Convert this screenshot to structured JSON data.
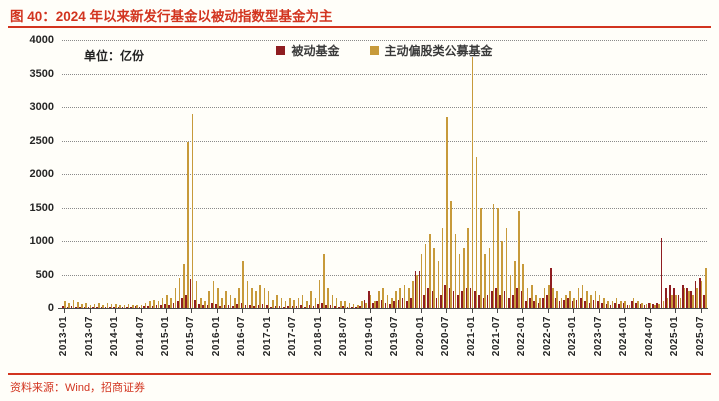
{
  "header": {
    "title": "图 40：2024 年以来新发行基金以被动指数型基金为主"
  },
  "footer": {
    "source": "资料来源：Wind，招商证券"
  },
  "colors": {
    "accent": "#D2341F",
    "background": "#FFFEF9",
    "text": "#262626",
    "grid": "#8a8a8a",
    "passive_series": "#8F1D21",
    "active_series": "#C79A3B"
  },
  "chart_data": {
    "type": "bar",
    "title": "图 40：2024 年以来新发行基金以被动指数型基金为主",
    "unit_label": "单位：亿份",
    "xlabel": "",
    "ylabel": "",
    "ylim": [
      0,
      4000
    ],
    "yticks": [
      0,
      500,
      1000,
      1500,
      2000,
      2500,
      3000,
      3500,
      4000
    ],
    "grid": "horizontal-dotted",
    "legend_position": "top-center",
    "x_tick_labels": [
      "2013-01",
      "2013-07",
      "2014-01",
      "2014-07",
      "2015-01",
      "2015-07",
      "2016-01",
      "2016-07",
      "2017-01",
      "2017-07",
      "2018-01",
      "2018-07",
      "2019-01",
      "2019-07",
      "2020-01",
      "2020-07",
      "2021-01",
      "2021-07",
      "2022-01",
      "2022-07",
      "2023-01",
      "2023-07",
      "2024-01",
      "2024-07",
      "2025-01",
      "2025-07"
    ],
    "categories": [
      "2013-01",
      "2013-02",
      "2013-03",
      "2013-04",
      "2013-05",
      "2013-06",
      "2013-07",
      "2013-08",
      "2013-09",
      "2013-10",
      "2013-11",
      "2013-12",
      "2014-01",
      "2014-02",
      "2014-03",
      "2014-04",
      "2014-05",
      "2014-06",
      "2014-07",
      "2014-08",
      "2014-09",
      "2014-10",
      "2014-11",
      "2014-12",
      "2015-01",
      "2015-02",
      "2015-03",
      "2015-04",
      "2015-05",
      "2015-06",
      "2015-07",
      "2015-08",
      "2015-09",
      "2015-10",
      "2015-11",
      "2015-12",
      "2016-01",
      "2016-02",
      "2016-03",
      "2016-04",
      "2016-05",
      "2016-06",
      "2016-07",
      "2016-08",
      "2016-09",
      "2016-10",
      "2016-11",
      "2016-12",
      "2017-01",
      "2017-02",
      "2017-03",
      "2017-04",
      "2017-05",
      "2017-06",
      "2017-07",
      "2017-08",
      "2017-09",
      "2017-10",
      "2017-11",
      "2017-12",
      "2018-01",
      "2018-02",
      "2018-03",
      "2018-04",
      "2018-05",
      "2018-06",
      "2018-07",
      "2018-08",
      "2018-09",
      "2018-10",
      "2018-11",
      "2018-12",
      "2019-01",
      "2019-02",
      "2019-03",
      "2019-04",
      "2019-05",
      "2019-06",
      "2019-07",
      "2019-08",
      "2019-09",
      "2019-10",
      "2019-11",
      "2019-12",
      "2020-01",
      "2020-02",
      "2020-03",
      "2020-04",
      "2020-05",
      "2020-06",
      "2020-07",
      "2020-08",
      "2020-09",
      "2020-10",
      "2020-11",
      "2020-12",
      "2021-01",
      "2021-02",
      "2021-03",
      "2021-04",
      "2021-05",
      "2021-06",
      "2021-07",
      "2021-08",
      "2021-09",
      "2021-10",
      "2021-11",
      "2021-12",
      "2022-01",
      "2022-02",
      "2022-03",
      "2022-04",
      "2022-05",
      "2022-06",
      "2022-07",
      "2022-08",
      "2022-09",
      "2022-10",
      "2022-11",
      "2022-12",
      "2023-01",
      "2023-02",
      "2023-03",
      "2023-04",
      "2023-05",
      "2023-06",
      "2023-07",
      "2023-08",
      "2023-09",
      "2023-10",
      "2023-11",
      "2023-12",
      "2024-01",
      "2024-02",
      "2024-03",
      "2024-04",
      "2024-05",
      "2024-06",
      "2024-07",
      "2024-08",
      "2024-09",
      "2024-10",
      "2024-11",
      "2024-12",
      "2025-01",
      "2025-02",
      "2025-03",
      "2025-04",
      "2025-05",
      "2025-06",
      "2025-07",
      "2025-08"
    ],
    "series": [
      {
        "name": "被动基金",
        "color": "#8F1D21",
        "values": [
          30,
          20,
          25,
          15,
          10,
          20,
          15,
          10,
          20,
          10,
          15,
          20,
          20,
          15,
          10,
          20,
          15,
          25,
          20,
          30,
          25,
          30,
          40,
          50,
          60,
          40,
          80,
          100,
          150,
          200,
          430,
          120,
          60,
          40,
          50,
          80,
          60,
          30,
          50,
          40,
          30,
          60,
          80,
          50,
          40,
          30,
          50,
          60,
          40,
          20,
          30,
          25,
          20,
          30,
          25,
          30,
          40,
          20,
          50,
          30,
          60,
          80,
          50,
          40,
          30,
          20,
          25,
          20,
          15,
          10,
          30,
          120,
          250,
          80,
          100,
          120,
          80,
          60,
          100,
          120,
          150,
          100,
          150,
          550,
          550,
          200,
          300,
          250,
          150,
          200,
          350,
          300,
          250,
          200,
          250,
          300,
          300,
          250,
          200,
          150,
          200,
          250,
          300,
          200,
          250,
          150,
          200,
          300,
          250,
          100,
          150,
          100,
          80,
          150,
          200,
          600,
          150,
          100,
          120,
          150,
          100,
          120,
          150,
          100,
          80,
          120,
          100,
          80,
          60,
          50,
          80,
          60,
          80,
          50,
          100,
          80,
          60,
          50,
          70,
          60,
          80,
          1050,
          300,
          350,
          300,
          200,
          350,
          300,
          250,
          400,
          450,
          200
        ]
      },
      {
        "name": "主动偏股类公募基金",
        "color": "#C79A3B",
        "values": [
          100,
          80,
          120,
          90,
          60,
          70,
          50,
          60,
          80,
          50,
          70,
          60,
          60,
          50,
          40,
          60,
          50,
          40,
          50,
          80,
          100,
          120,
          100,
          150,
          200,
          150,
          300,
          450,
          650,
          2480,
          2900,
          400,
          150,
          100,
          250,
          400,
          300,
          150,
          250,
          200,
          150,
          300,
          700,
          400,
          300,
          250,
          350,
          300,
          250,
          120,
          200,
          150,
          100,
          150,
          120,
          150,
          200,
          100,
          250,
          150,
          420,
          800,
          300,
          200,
          150,
          100,
          100,
          80,
          60,
          50,
          100,
          80,
          200,
          100,
          250,
          300,
          200,
          150,
          250,
          300,
          350,
          300,
          400,
          500,
          800,
          950,
          1100,
          900,
          700,
          1200,
          2850,
          1600,
          1100,
          800,
          900,
          1200,
          3750,
          2250,
          1500,
          800,
          900,
          1550,
          1500,
          1000,
          1200,
          500,
          700,
          1450,
          650,
          300,
          350,
          200,
          150,
          300,
          350,
          300,
          250,
          150,
          200,
          250,
          150,
          300,
          350,
          250,
          200,
          250,
          200,
          150,
          100,
          100,
          150,
          100,
          100,
          50,
          150,
          100,
          80,
          60,
          80,
          50,
          60,
          100,
          150,
          200,
          200,
          150,
          300,
          250,
          200,
          300,
          400,
          600
        ]
      }
    ]
  }
}
